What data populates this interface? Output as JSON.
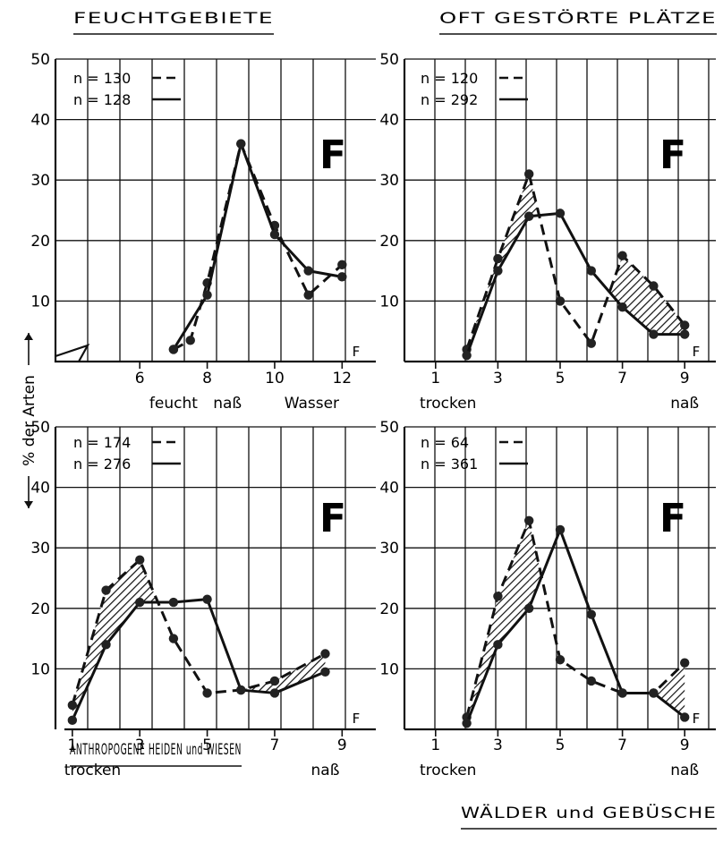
{
  "y_axis_label": "% der Arten",
  "legend_dashed_symbol": "dashed",
  "legend_solid_symbol": "solid",
  "chart_data": [
    {
      "type": "line",
      "title": "FEUCHTGEBIETE",
      "letter": "F",
      "corner_letter": "F",
      "ylim": [
        0,
        50
      ],
      "yticks": [
        10,
        20,
        30,
        40,
        50
      ],
      "xlim": [
        3.5,
        13
      ],
      "xticks": [
        6,
        8,
        10,
        12
      ],
      "xlabels": [
        {
          "x": 7.0,
          "text": "feucht"
        },
        {
          "x": 8.6,
          "text": "naß"
        },
        {
          "x": 11.1,
          "text": "Wasser"
        }
      ],
      "series": [
        {
          "name": "n = 130",
          "style": "dashed",
          "x": [
            7,
            7.5,
            8,
            9,
            10,
            11,
            12
          ],
          "y": [
            2,
            3.5,
            13,
            36,
            22.5,
            11,
            16
          ]
        },
        {
          "name": "n = 128",
          "style": "solid",
          "x": [
            7,
            8,
            9,
            10,
            11,
            12
          ],
          "y": [
            2,
            11,
            36,
            21,
            15,
            14
          ]
        }
      ]
    },
    {
      "type": "line",
      "title": "OFT GESTÖRTE PLÄTZE",
      "letter": "F",
      "corner_letter": "F",
      "ylim": [
        0,
        50
      ],
      "yticks": [
        10,
        20,
        30,
        40,
        50
      ],
      "xlim": [
        0,
        10
      ],
      "xticks": [
        1,
        3,
        5,
        7,
        9
      ],
      "xlabels": [
        {
          "x": 1.4,
          "text": "trocken"
        },
        {
          "x": 9,
          "text": "naß"
        }
      ],
      "series": [
        {
          "name": "n = 120",
          "style": "dashed",
          "x": [
            2,
            3,
            4,
            5,
            6,
            7,
            8,
            9
          ],
          "y": [
            2,
            17,
            31,
            10,
            3,
            17.5,
            12.5,
            6
          ]
        },
        {
          "name": "n = 292",
          "style": "solid",
          "x": [
            2,
            3,
            4,
            5,
            6,
            7,
            8,
            9
          ],
          "y": [
            1,
            15,
            24,
            24.5,
            15,
            9,
            4.5,
            4.5
          ]
        }
      ]
    },
    {
      "type": "line",
      "title": "ANTHROPOGENE HEIDEN und WIESEN",
      "letter": "F",
      "corner_letter": "F",
      "ylim": [
        0,
        50
      ],
      "yticks": [
        10,
        20,
        30,
        40,
        50
      ],
      "xlim": [
        0.5,
        10
      ],
      "xticks": [
        1,
        3,
        5,
        7,
        9
      ],
      "xlabels": [
        {
          "x": 1.6,
          "text": "trocken"
        },
        {
          "x": 8.5,
          "text": "naß"
        }
      ],
      "series": [
        {
          "name": "n = 174",
          "style": "dashed",
          "x": [
            1,
            2,
            3,
            4,
            5,
            6,
            7,
            8.5
          ],
          "y": [
            4,
            23,
            28,
            15,
            6,
            6.5,
            8,
            12.5
          ]
        },
        {
          "name": "n = 276",
          "style": "solid",
          "x": [
            1,
            2,
            3,
            4,
            5,
            6,
            7,
            8.5
          ],
          "y": [
            1.5,
            14,
            21,
            21,
            21.5,
            6.5,
            6,
            9.5
          ]
        }
      ]
    },
    {
      "type": "line",
      "title": "WÄLDER und GEBÜSCHE",
      "letter": "F",
      "corner_letter": "F",
      "ylim": [
        0,
        50
      ],
      "yticks": [
        10,
        20,
        30,
        40,
        50
      ],
      "xlim": [
        0,
        10
      ],
      "xticks": [
        1,
        3,
        5,
        7,
        9
      ],
      "xlabels": [
        {
          "x": 1.4,
          "text": "trocken"
        },
        {
          "x": 9,
          "text": "naß"
        }
      ],
      "series": [
        {
          "name": "n = 64",
          "style": "dashed",
          "x": [
            2,
            3,
            4,
            5,
            6,
            7,
            8,
            9
          ],
          "y": [
            2,
            22,
            34.5,
            11.5,
            8,
            6,
            6,
            11
          ]
        },
        {
          "name": "n = 361",
          "style": "solid",
          "x": [
            2,
            3,
            4,
            5,
            6,
            7,
            8,
            9
          ],
          "y": [
            1,
            14,
            20,
            33,
            19,
            6,
            6,
            2
          ]
        }
      ]
    }
  ]
}
